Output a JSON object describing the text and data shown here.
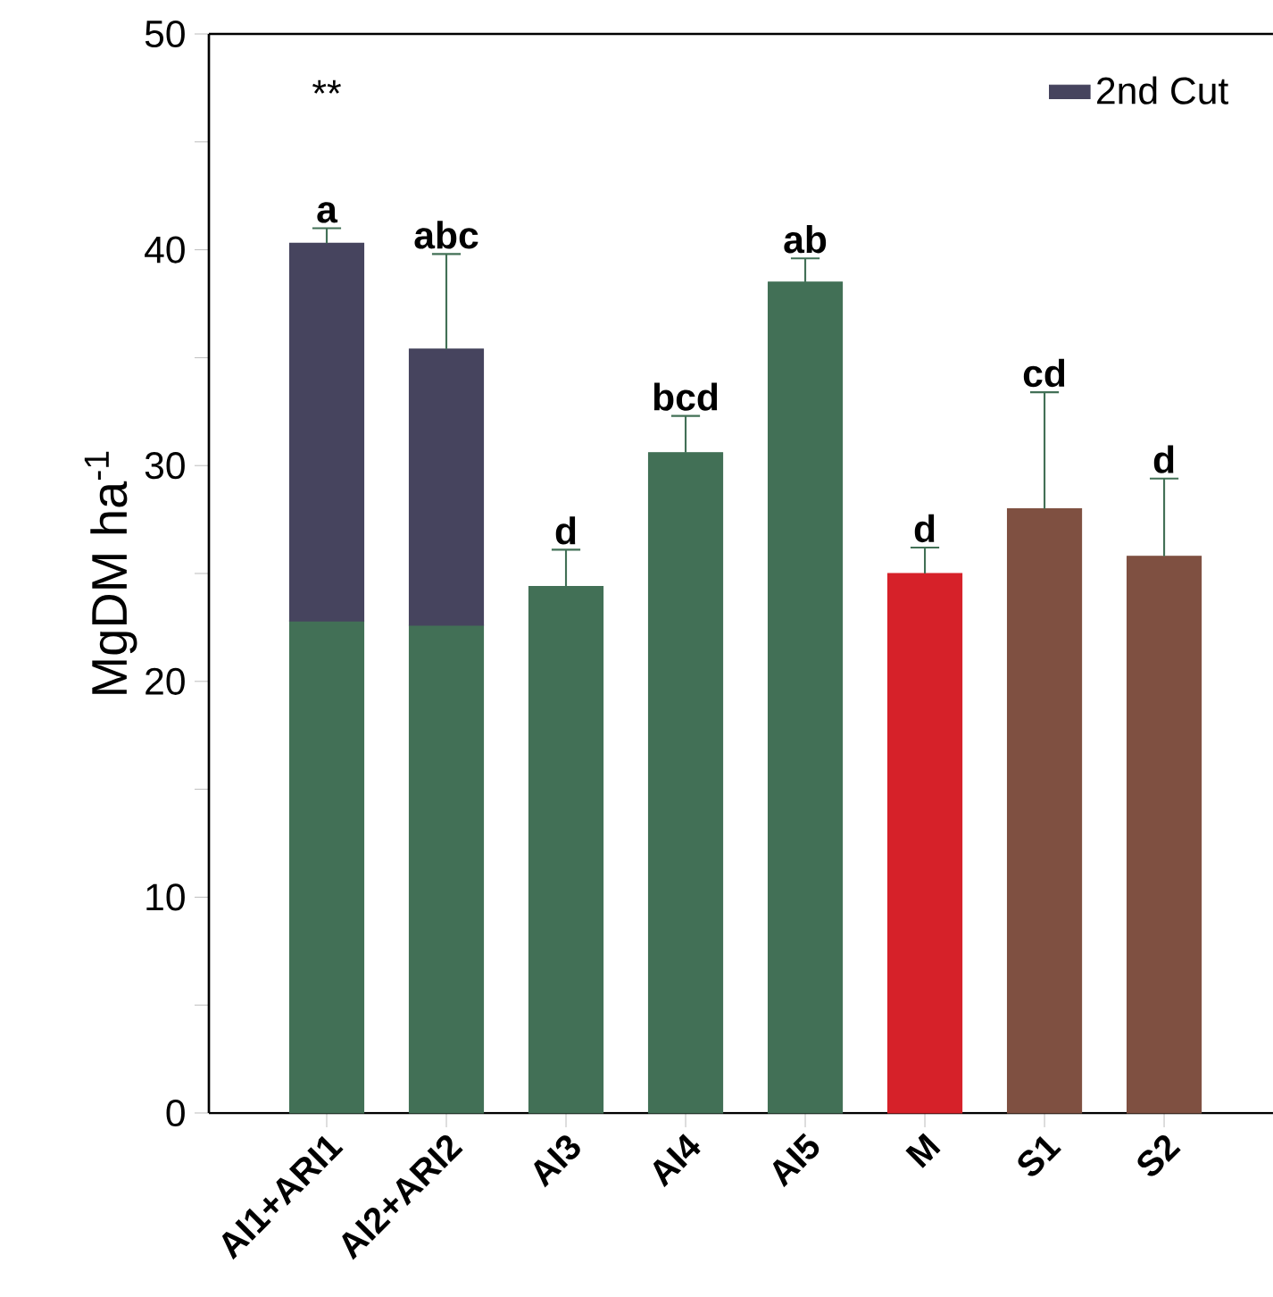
{
  "chart_data": {
    "type": "bar",
    "stacked": true,
    "ylabel": "MgDM ha$^{-1}$",
    "categories": [
      "AI1+ARI1",
      "AI2+ARI2",
      "AI3",
      "AI4",
      "AI5",
      "M",
      "S1",
      "S2"
    ],
    "series": [
      {
        "colors": [
          "#427056",
          "#427056",
          "#427056",
          "#427056",
          "#427056",
          "#d62129",
          "#7f5041",
          "#7f5041"
        ],
        "values": [
          22.8,
          22.6,
          24.4,
          30.6,
          38.5,
          25.0,
          28.0,
          25.8
        ],
        "errors": [
          null,
          null,
          [
            24.4,
            26.1
          ],
          [
            30.6,
            32.3
          ],
          [
            38.5,
            39.6
          ],
          [
            25.0,
            26.2
          ],
          [
            28.0,
            33.4
          ],
          [
            25.8,
            29.4
          ]
        ]
      },
      {
        "name": "2nd Cut",
        "color": "#46445e",
        "values": [
          17.5,
          12.8,
          null,
          null,
          null,
          null,
          null,
          null
        ],
        "errors": [
          [
            40.3,
            41.0
          ],
          [
            35.4,
            39.8
          ],
          null,
          null,
          null,
          null,
          null,
          null
        ]
      }
    ],
    "ylim": [
      0,
      50
    ],
    "yticks": [
      0,
      {
        "value": 5,
        "label": null
      },
      10,
      {
        "value": 15,
        "label": null
      },
      20,
      {
        "value": 25,
        "label": null
      },
      30,
      {
        "value": 35,
        "label": null
      },
      40,
      {
        "value": 45,
        "label": null
      },
      50
    ],
    "legend": "top right",
    "annotations": [
      "**",
      {
        "text": "a",
        "x": "AI1+ARI1",
        "y": 41.0
      },
      {
        "text": "abc",
        "x": "AI2+ARI2",
        "y": 39.8
      },
      {
        "text": "d",
        "x": "AI3",
        "y": 26.1
      },
      {
        "text": "bcd",
        "x": "AI4",
        "y": 32.3
      },
      {
        "text": "ab",
        "x": "AI5",
        "y": 39.6
      },
      {
        "text": "d",
        "x": "M",
        "y": 26.2
      },
      {
        "text": "cd",
        "x": "S1",
        "y": 33.4
      },
      {
        "text": "d",
        "x": "S2",
        "y": 29.4
      }
    ]
  }
}
